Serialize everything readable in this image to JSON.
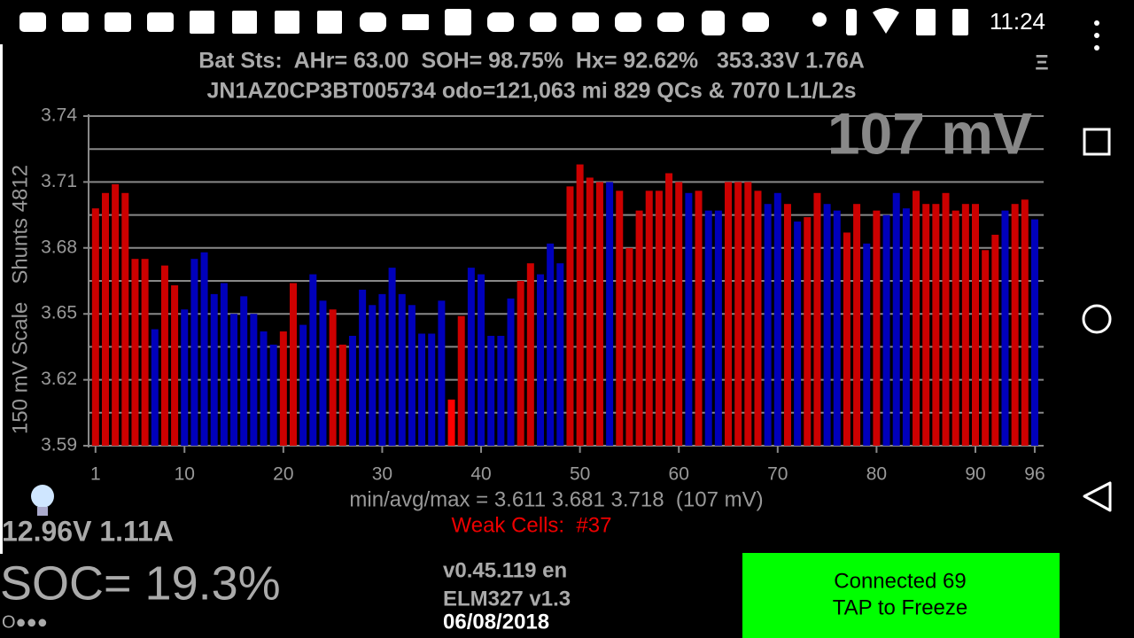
{
  "status_bar": {
    "time": "11:24"
  },
  "header": {
    "line1": "Bat Sts:  AHr= 63.00  SOH= 98.75%  Hx= 92.62%   353.33V 1.76A",
    "line2": "JN1AZ0CP3BT005734 odo=121,063 mi  829 QCs & 7070 L1/L2s",
    "menu": "Ξ"
  },
  "chart_data": {
    "type": "bar",
    "ylabel": "150 mV Scale   Shunts 4812",
    "annotation": "107 mV",
    "x": [
      1,
      2,
      3,
      4,
      5,
      6,
      7,
      8,
      9,
      10,
      11,
      12,
      13,
      14,
      15,
      16,
      17,
      18,
      19,
      20,
      21,
      22,
      23,
      24,
      25,
      26,
      27,
      28,
      29,
      30,
      31,
      32,
      33,
      34,
      35,
      36,
      37,
      38,
      39,
      40,
      41,
      42,
      43,
      44,
      45,
      46,
      47,
      48,
      49,
      50,
      51,
      52,
      53,
      54,
      55,
      56,
      57,
      58,
      59,
      60,
      61,
      62,
      63,
      64,
      65,
      66,
      67,
      68,
      69,
      70,
      71,
      72,
      73,
      74,
      75,
      76,
      77,
      78,
      79,
      80,
      81,
      82,
      83,
      84,
      85,
      86,
      87,
      88,
      89,
      90,
      91,
      92,
      93,
      94,
      95,
      96
    ],
    "series": [
      {
        "values": [
          3.698,
          3.705,
          3.709,
          3.705,
          3.675,
          3.675,
          3.643,
          3.672,
          3.663,
          3.652,
          3.675,
          3.678,
          3.659,
          3.664,
          3.65,
          3.658,
          3.65,
          3.642,
          3.636,
          3.642,
          3.664,
          3.645,
          3.668,
          3.656,
          3.652,
          3.636,
          3.64,
          3.661,
          3.654,
          3.659,
          3.671,
          3.659,
          3.654,
          3.641,
          3.641,
          3.656,
          3.611,
          3.649,
          3.671,
          3.668,
          3.64,
          3.64,
          3.657,
          3.665,
          3.673,
          3.668,
          3.682,
          3.673,
          3.708,
          3.718,
          3.712,
          3.71,
          3.71,
          3.706,
          3.68,
          3.697,
          3.706,
          3.706,
          3.714,
          3.71,
          3.705,
          3.706,
          3.697,
          3.697,
          3.71,
          3.71,
          3.71,
          3.706,
          3.7,
          3.705,
          3.7,
          3.692,
          3.694,
          3.705,
          3.7,
          3.697,
          3.687,
          3.7,
          3.682,
          3.697,
          3.695,
          3.705,
          3.698,
          3.706,
          3.7,
          3.7,
          3.705,
          3.697,
          3.7,
          3.7,
          3.679,
          3.686,
          3.697,
          3.7,
          3.702,
          3.693
        ],
        "colors": [
          "#cc0000",
          "#cc0000",
          "#cc0000",
          "#cc0000",
          "#cc0000",
          "#cc0000",
          "#0000bb",
          "#cc0000",
          "#cc0000",
          "#0000bb",
          "#0000bb",
          "#0000bb",
          "#0000bb",
          "#0000bb",
          "#0000bb",
          "#0000bb",
          "#0000bb",
          "#0000bb",
          "#0000bb",
          "#cc0000",
          "#cc0000",
          "#0000bb",
          "#0000bb",
          "#0000bb",
          "#cc0000",
          "#cc0000",
          "#0000bb",
          "#0000bb",
          "#0000bb",
          "#0000bb",
          "#0000bb",
          "#0000bb",
          "#0000bb",
          "#0000bb",
          "#0000bb",
          "#0000bb",
          "#ff0000",
          "#cc0000",
          "#0000bb",
          "#0000bb",
          "#0000bb",
          "#0000bb",
          "#0000bb",
          "#cc0000",
          "#cc0000",
          "#0000bb",
          "#0000bb",
          "#0000bb",
          "#cc0000",
          "#cc0000",
          "#cc0000",
          "#cc0000",
          "#0000bb",
          "#cc0000",
          "#cc0000",
          "#cc0000",
          "#cc0000",
          "#cc0000",
          "#cc0000",
          "#cc0000",
          "#0000bb",
          "#cc0000",
          "#0000bb",
          "#0000bb",
          "#cc0000",
          "#cc0000",
          "#cc0000",
          "#cc0000",
          "#0000bb",
          "#0000bb",
          "#cc0000",
          "#0000bb",
          "#cc0000",
          "#cc0000",
          "#0000bb",
          "#0000bb",
          "#cc0000",
          "#cc0000",
          "#0000bb",
          "#cc0000",
          "#0000bb",
          "#0000bb",
          "#0000bb",
          "#cc0000",
          "#cc0000",
          "#cc0000",
          "#cc0000",
          "#cc0000",
          "#cc0000",
          "#cc0000",
          "#cc0000",
          "#cc0000",
          "#0000bb",
          "#cc0000",
          "#cc0000",
          "#0000bb"
        ]
      }
    ],
    "xlim": [
      0.3,
      96.9
    ],
    "xticks": [
      1,
      10,
      20,
      30,
      40,
      50,
      60,
      70,
      80,
      90,
      96
    ],
    "ylim": [
      3.59,
      3.74
    ],
    "yticks": [
      3.59,
      3.62,
      3.65,
      3.68,
      3.71,
      3.74
    ],
    "yminor_grid": [
      3.605,
      3.635,
      3.665,
      3.695,
      3.725
    ],
    "grid": true,
    "stats": "min/avg/max = 3.611 3.681 3.718  (107 mV)",
    "weak_cells": "Weak Cells:  #37"
  },
  "footer": {
    "aux": "12.96V 1.11A",
    "soc": "SOC= 19.3%",
    "dots": "O●●●",
    "version": "v0.45.119 en",
    "adapter": "ELM327 v1.3",
    "date": "06/08/2018",
    "button_line1": "Connected 69",
    "button_line2": "TAP to Freeze"
  }
}
